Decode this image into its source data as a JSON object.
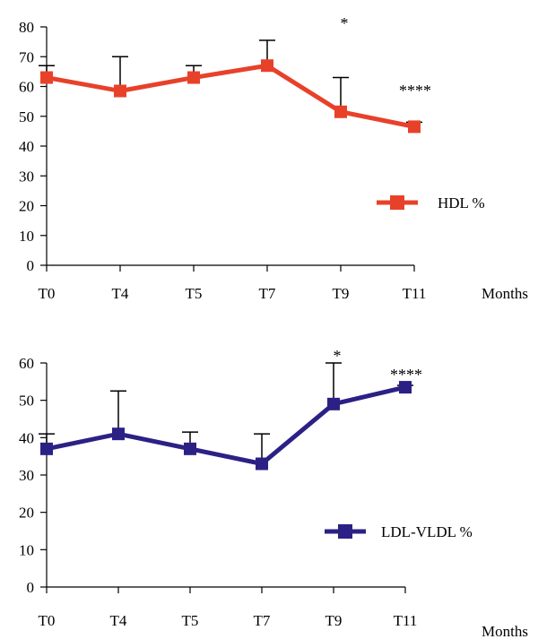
{
  "chart_data": [
    {
      "type": "line",
      "title": "",
      "xlabel": "Months",
      "ylabel": "",
      "ylim": [
        0,
        80
      ],
      "yticks": [
        0,
        10,
        20,
        30,
        40,
        50,
        60,
        70,
        80
      ],
      "categories": [
        "T0",
        "T4",
        "T5",
        "T7",
        "T9",
        "T11"
      ],
      "series": [
        {
          "name": "HDL %",
          "color": "#e8412a",
          "marker": "square",
          "values": [
            63,
            58.5,
            63,
            67,
            51.5,
            46.5
          ],
          "error_upper": [
            67,
            70,
            67,
            75.5,
            63,
            48
          ]
        }
      ],
      "annotations": [
        {
          "category": "T9",
          "text": "*"
        },
        {
          "category": "T11",
          "text": "****"
        }
      ],
      "legend": "right"
    },
    {
      "type": "line",
      "title": "",
      "xlabel": "Months",
      "ylabel": "",
      "ylim": [
        0,
        60
      ],
      "yticks": [
        0,
        10,
        20,
        30,
        40,
        50,
        60
      ],
      "categories": [
        "T0",
        "T4",
        "T5",
        "T7",
        "T9",
        "T11"
      ],
      "series": [
        {
          "name": "LDL-VLDL %",
          "color": "#2b2185",
          "marker": "square",
          "values": [
            37,
            41,
            37,
            33,
            49,
            53.5
          ],
          "error_upper": [
            41,
            52.5,
            41.5,
            41,
            60,
            54
          ]
        }
      ],
      "annotations": [
        {
          "category": "T9",
          "text": "*"
        },
        {
          "category": "T11",
          "text": "****"
        }
      ],
      "legend": "right"
    }
  ]
}
